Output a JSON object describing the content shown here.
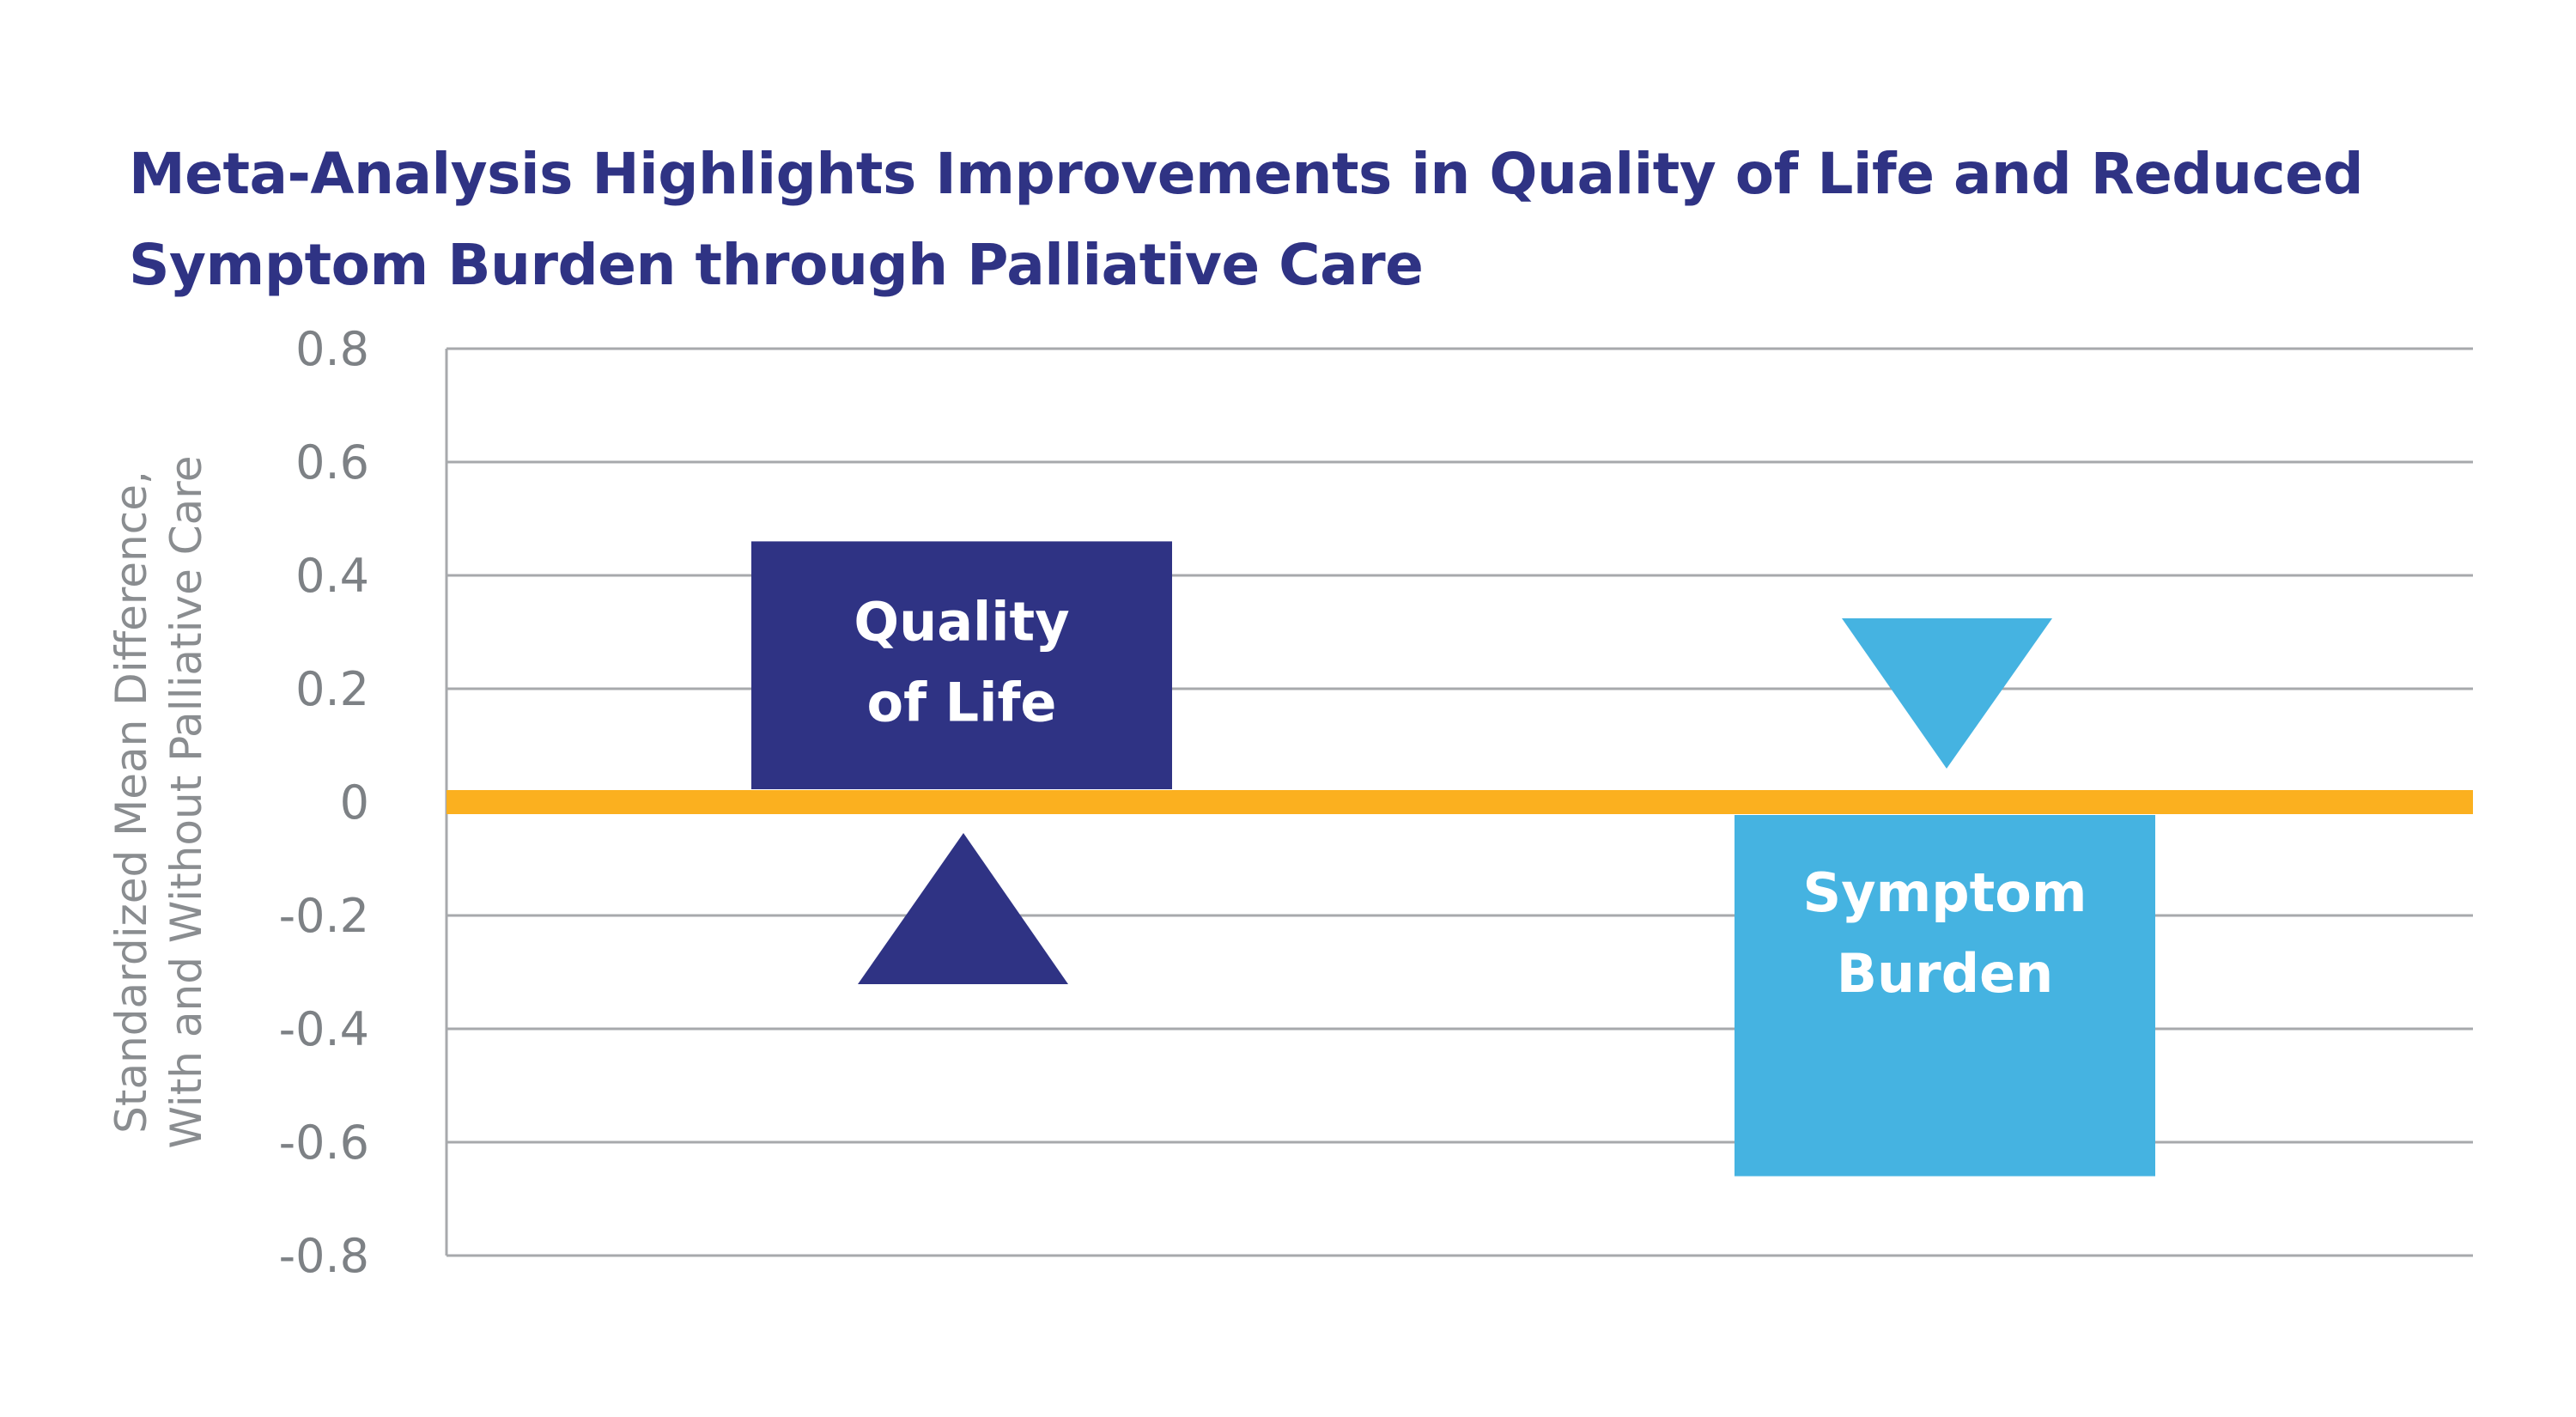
{
  "title_lines": [
    "Meta-Analysis Highlights Improvements in Quality of Life and Reduced",
    "Symptom Burden through Palliative Care"
  ],
  "chart_data": {
    "type": "bar",
    "title": "Meta-Analysis Highlights Improvements in Quality of Life and Reduced Symptom Burden through Palliative Care",
    "ylabel_lines": [
      "Standardized Mean Difference,",
      "With and Without Palliative Care"
    ],
    "ylim": [
      -0.8,
      0.8
    ],
    "yticks": [
      0.8,
      0.6,
      0.4,
      0.2,
      0,
      -0.2,
      -0.4,
      -0.6,
      -0.8
    ],
    "ytick_labels": [
      "0.8",
      "0.6",
      "0.4",
      "0.2",
      "0",
      "-0.2",
      "-0.4",
      "-0.6",
      "-0.8"
    ],
    "grid": true,
    "bars": [
      {
        "label_lines": [
          "Quality",
          "of Life"
        ],
        "value": 0.46,
        "color": "#2f3384",
        "direction": "up"
      },
      {
        "label_lines": [
          "Symptom",
          "Burden"
        ],
        "value": -0.66,
        "color": "#45b3e1",
        "direction": "down"
      }
    ],
    "zero_line_color": "#fbb01f",
    "grid_color": "#a7a9ac"
  }
}
